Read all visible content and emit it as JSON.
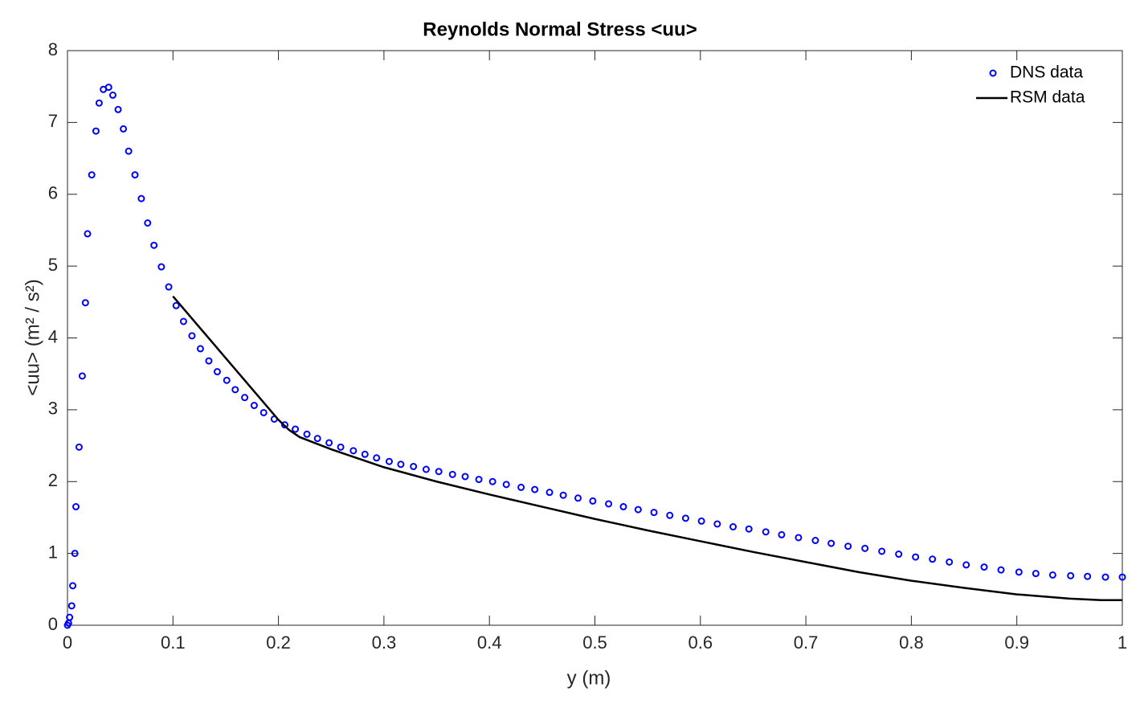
{
  "chart_data": {
    "type": "line",
    "title": "Reynolds Normal Stress <uu>",
    "xlabel": "y (m)",
    "ylabel": "<uu> (m² / s²)",
    "xlim": [
      0,
      1
    ],
    "ylim": [
      0,
      8
    ],
    "xticks": [
      0,
      0.1,
      0.2,
      0.3,
      0.4,
      0.5,
      0.6,
      0.7,
      0.8,
      0.9,
      1
    ],
    "yticks": [
      0,
      1,
      2,
      3,
      4,
      5,
      6,
      7,
      8
    ],
    "grid": false,
    "legend": "top-right",
    "series": [
      {
        "name": "DNS data",
        "color": "#0000ff",
        "mode": "markers",
        "x": [
          0,
          0.001,
          0.002,
          0.004,
          0.005,
          0.007,
          0.008,
          0.011,
          0.014,
          0.017,
          0.019,
          0.023,
          0.027,
          0.03,
          0.034,
          0.039,
          0.043,
          0.048,
          0.053,
          0.058,
          0.064,
          0.07,
          0.076,
          0.082,
          0.089,
          0.096,
          0.103,
          0.11,
          0.118,
          0.126,
          0.134,
          0.142,
          0.151,
          0.159,
          0.168,
          0.177,
          0.186,
          0.196,
          0.206,
          0.216,
          0.227,
          0.237,
          0.248,
          0.259,
          0.271,
          0.282,
          0.293,
          0.305,
          0.316,
          0.328,
          0.34,
          0.352,
          0.365,
          0.377,
          0.39,
          0.403,
          0.416,
          0.43,
          0.443,
          0.457,
          0.47,
          0.484,
          0.498,
          0.513,
          0.527,
          0.541,
          0.556,
          0.571,
          0.586,
          0.601,
          0.616,
          0.631,
          0.646,
          0.662,
          0.677,
          0.693,
          0.709,
          0.724,
          0.74,
          0.756,
          0.772,
          0.788,
          0.804,
          0.82,
          0.836,
          0.852,
          0.869,
          0.885,
          0.902,
          0.918,
          0.934,
          0.951,
          0.967,
          0.984,
          1.0
        ],
        "values": [
          0,
          0.03,
          0.11,
          0.27,
          0.55,
          1.0,
          1.65,
          2.48,
          3.47,
          4.49,
          5.45,
          6.27,
          6.88,
          7.27,
          7.46,
          7.49,
          7.38,
          7.18,
          6.91,
          6.6,
          6.27,
          5.94,
          5.6,
          5.29,
          4.99,
          4.71,
          4.45,
          4.23,
          4.03,
          3.85,
          3.68,
          3.53,
          3.41,
          3.28,
          3.17,
          3.06,
          2.96,
          2.87,
          2.79,
          2.73,
          2.66,
          2.6,
          2.54,
          2.48,
          2.43,
          2.38,
          2.33,
          2.28,
          2.24,
          2.21,
          2.17,
          2.14,
          2.1,
          2.07,
          2.03,
          2.0,
          1.96,
          1.92,
          1.89,
          1.85,
          1.81,
          1.77,
          1.73,
          1.69,
          1.65,
          1.61,
          1.57,
          1.53,
          1.49,
          1.45,
          1.41,
          1.37,
          1.34,
          1.3,
          1.26,
          1.22,
          1.18,
          1.14,
          1.1,
          1.07,
          1.03,
          0.99,
          0.95,
          0.92,
          0.88,
          0.84,
          0.81,
          0.77,
          0.74,
          0.72,
          0.7,
          0.69,
          0.68,
          0.67,
          0.67
        ]
      },
      {
        "name": "RSM data",
        "color": "#000000",
        "mode": "line",
        "x": [
          0.1,
          0.15,
          0.2,
          0.21,
          0.22,
          0.25,
          0.3,
          0.35,
          0.4,
          0.45,
          0.5,
          0.55,
          0.6,
          0.65,
          0.7,
          0.75,
          0.8,
          0.85,
          0.9,
          0.95,
          0.98,
          1.0
        ],
        "values": [
          4.58,
          3.72,
          2.86,
          2.72,
          2.62,
          2.45,
          2.2,
          2.0,
          1.82,
          1.65,
          1.48,
          1.32,
          1.17,
          1.02,
          0.88,
          0.74,
          0.62,
          0.52,
          0.43,
          0.37,
          0.35,
          0.35
        ]
      }
    ]
  }
}
